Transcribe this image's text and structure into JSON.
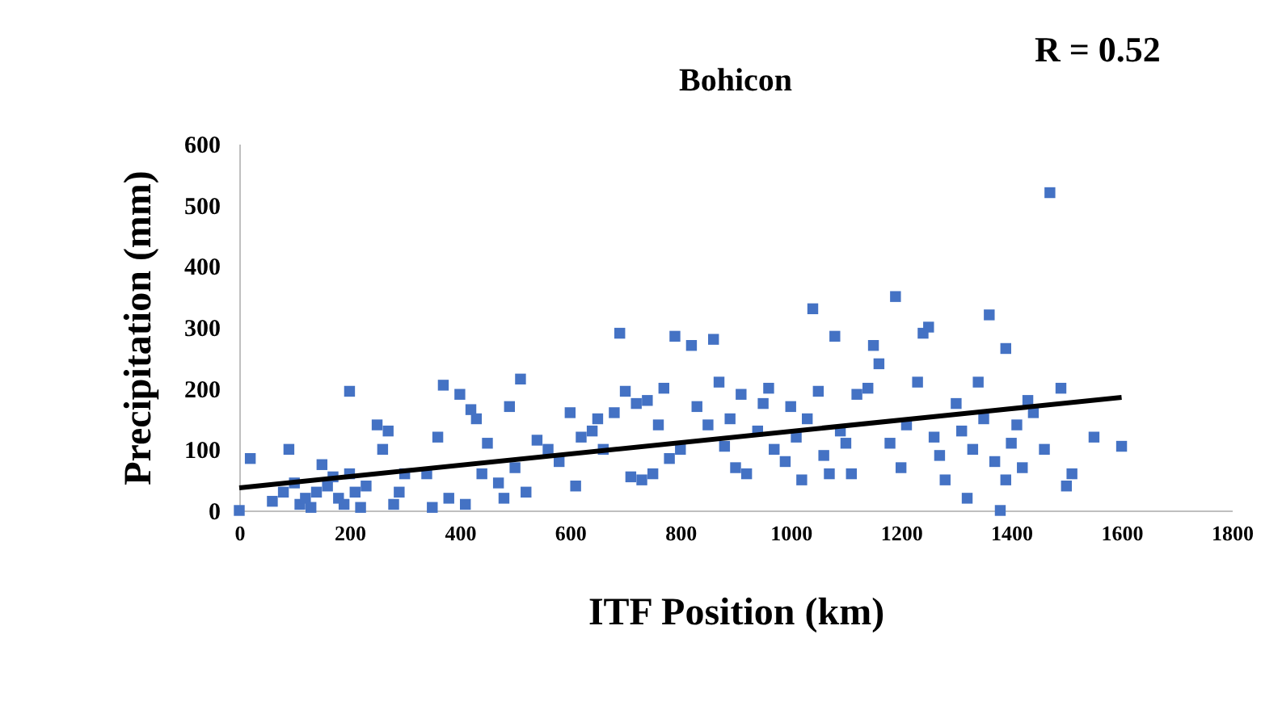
{
  "chart_data": {
    "type": "scatter",
    "title": "Bohicon",
    "annotations": [
      "R = 0.52"
    ],
    "xlabel": "ITF Position (km)",
    "ylabel": "Precipitation (mm)",
    "xlim": [
      0,
      1800
    ],
    "ylim": [
      0,
      600
    ],
    "xticks": [
      0,
      200,
      400,
      600,
      800,
      1000,
      1200,
      1400,
      1600,
      1800
    ],
    "yticks": [
      0,
      100,
      200,
      300,
      400,
      500,
      600
    ],
    "series": [
      {
        "marker": "square",
        "color": "#4472c4",
        "x": [
          0,
          20,
          60,
          80,
          90,
          100,
          110,
          120,
          130,
          140,
          150,
          160,
          170,
          180,
          190,
          200,
          200,
          210,
          220,
          230,
          250,
          260,
          270,
          280,
          290,
          300,
          340,
          350,
          360,
          370,
          380,
          400,
          410,
          420,
          430,
          440,
          450,
          470,
          480,
          490,
          500,
          510,
          520,
          540,
          560,
          580,
          600,
          610,
          620,
          640,
          650,
          660,
          680,
          690,
          700,
          710,
          720,
          730,
          740,
          750,
          760,
          770,
          780,
          790,
          800,
          820,
          830,
          850,
          860,
          870,
          880,
          890,
          900,
          910,
          920,
          940,
          950,
          960,
          970,
          990,
          1000,
          1010,
          1020,
          1030,
          1040,
          1050,
          1060,
          1070,
          1080,
          1090,
          1100,
          1110,
          1120,
          1140,
          1150,
          1160,
          1180,
          1190,
          1200,
          1210,
          1230,
          1240,
          1250,
          1260,
          1270,
          1280,
          1300,
          1310,
          1320,
          1330,
          1340,
          1350,
          1360,
          1370,
          1380,
          1390,
          1390,
          1400,
          1410,
          1420,
          1430,
          1440,
          1460,
          1470,
          1490,
          1500,
          1510,
          1550,
          1600
        ],
        "values": [
          0,
          85,
          15,
          30,
          100,
          45,
          10,
          20,
          5,
          30,
          75,
          40,
          55,
          20,
          10,
          60,
          195,
          30,
          5,
          40,
          140,
          100,
          130,
          10,
          30,
          60,
          60,
          5,
          120,
          205,
          20,
          190,
          10,
          165,
          150,
          60,
          110,
          45,
          20,
          170,
          70,
          215,
          30,
          115,
          100,
          80,
          160,
          40,
          120,
          130,
          150,
          100,
          160,
          290,
          195,
          55,
          175,
          50,
          180,
          60,
          140,
          200,
          85,
          285,
          100,
          270,
          170,
          140,
          280,
          210,
          105,
          150,
          70,
          190,
          60,
          130,
          175,
          200,
          100,
          80,
          170,
          120,
          50,
          150,
          330,
          195,
          90,
          60,
          285,
          130,
          110,
          60,
          190,
          200,
          270,
          240,
          110,
          350,
          70,
          140,
          210,
          290,
          300,
          120,
          90,
          50,
          175,
          130,
          20,
          100,
          210,
          150,
          320,
          80,
          0,
          50,
          265,
          110,
          140,
          70,
          180,
          160,
          100,
          520,
          200,
          40,
          60,
          120,
          105
        ]
      },
      {
        "type": "line",
        "color": "#000000",
        "x": [
          0,
          1600
        ],
        "values": [
          37,
          185
        ]
      }
    ]
  }
}
